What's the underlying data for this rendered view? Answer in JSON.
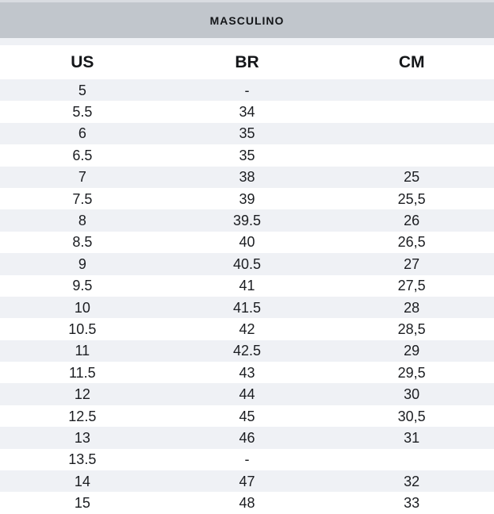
{
  "header": {
    "title": "MASCULINO"
  },
  "chart_data": {
    "type": "table",
    "title": "MASCULINO",
    "columns": [
      "US",
      "BR",
      "CM"
    ],
    "rows": [
      [
        "5",
        "-",
        ""
      ],
      [
        "5.5",
        "34",
        ""
      ],
      [
        "6",
        "35",
        ""
      ],
      [
        "6.5",
        "35",
        ""
      ],
      [
        "7",
        "38",
        "25"
      ],
      [
        "7.5",
        "39",
        "25,5"
      ],
      [
        "8",
        "39.5",
        "26"
      ],
      [
        "8.5",
        "40",
        "26,5"
      ],
      [
        "9",
        "40.5",
        "27"
      ],
      [
        "9.5",
        "41",
        "27,5"
      ],
      [
        "10",
        "41.5",
        "28"
      ],
      [
        "10.5",
        "42",
        "28,5"
      ],
      [
        "11",
        "42.5",
        "29"
      ],
      [
        "11.5",
        "43",
        "29,5"
      ],
      [
        "12",
        "44",
        "30"
      ],
      [
        "12.5",
        "45",
        "30,5"
      ],
      [
        "13",
        "46",
        "31"
      ],
      [
        "13.5",
        "-",
        ""
      ],
      [
        "14",
        "47",
        "32"
      ],
      [
        "15",
        "48",
        "33"
      ]
    ],
    "layout": {
      "zebra_striping": true,
      "first_row_shaded": true
    }
  },
  "colors": {
    "header_bg": "#c1c6cc",
    "top_strip": "#d9dce1",
    "row_alt_bg": "#eff1f5",
    "row_bg": "#ffffff",
    "text": "#1b1d21"
  }
}
